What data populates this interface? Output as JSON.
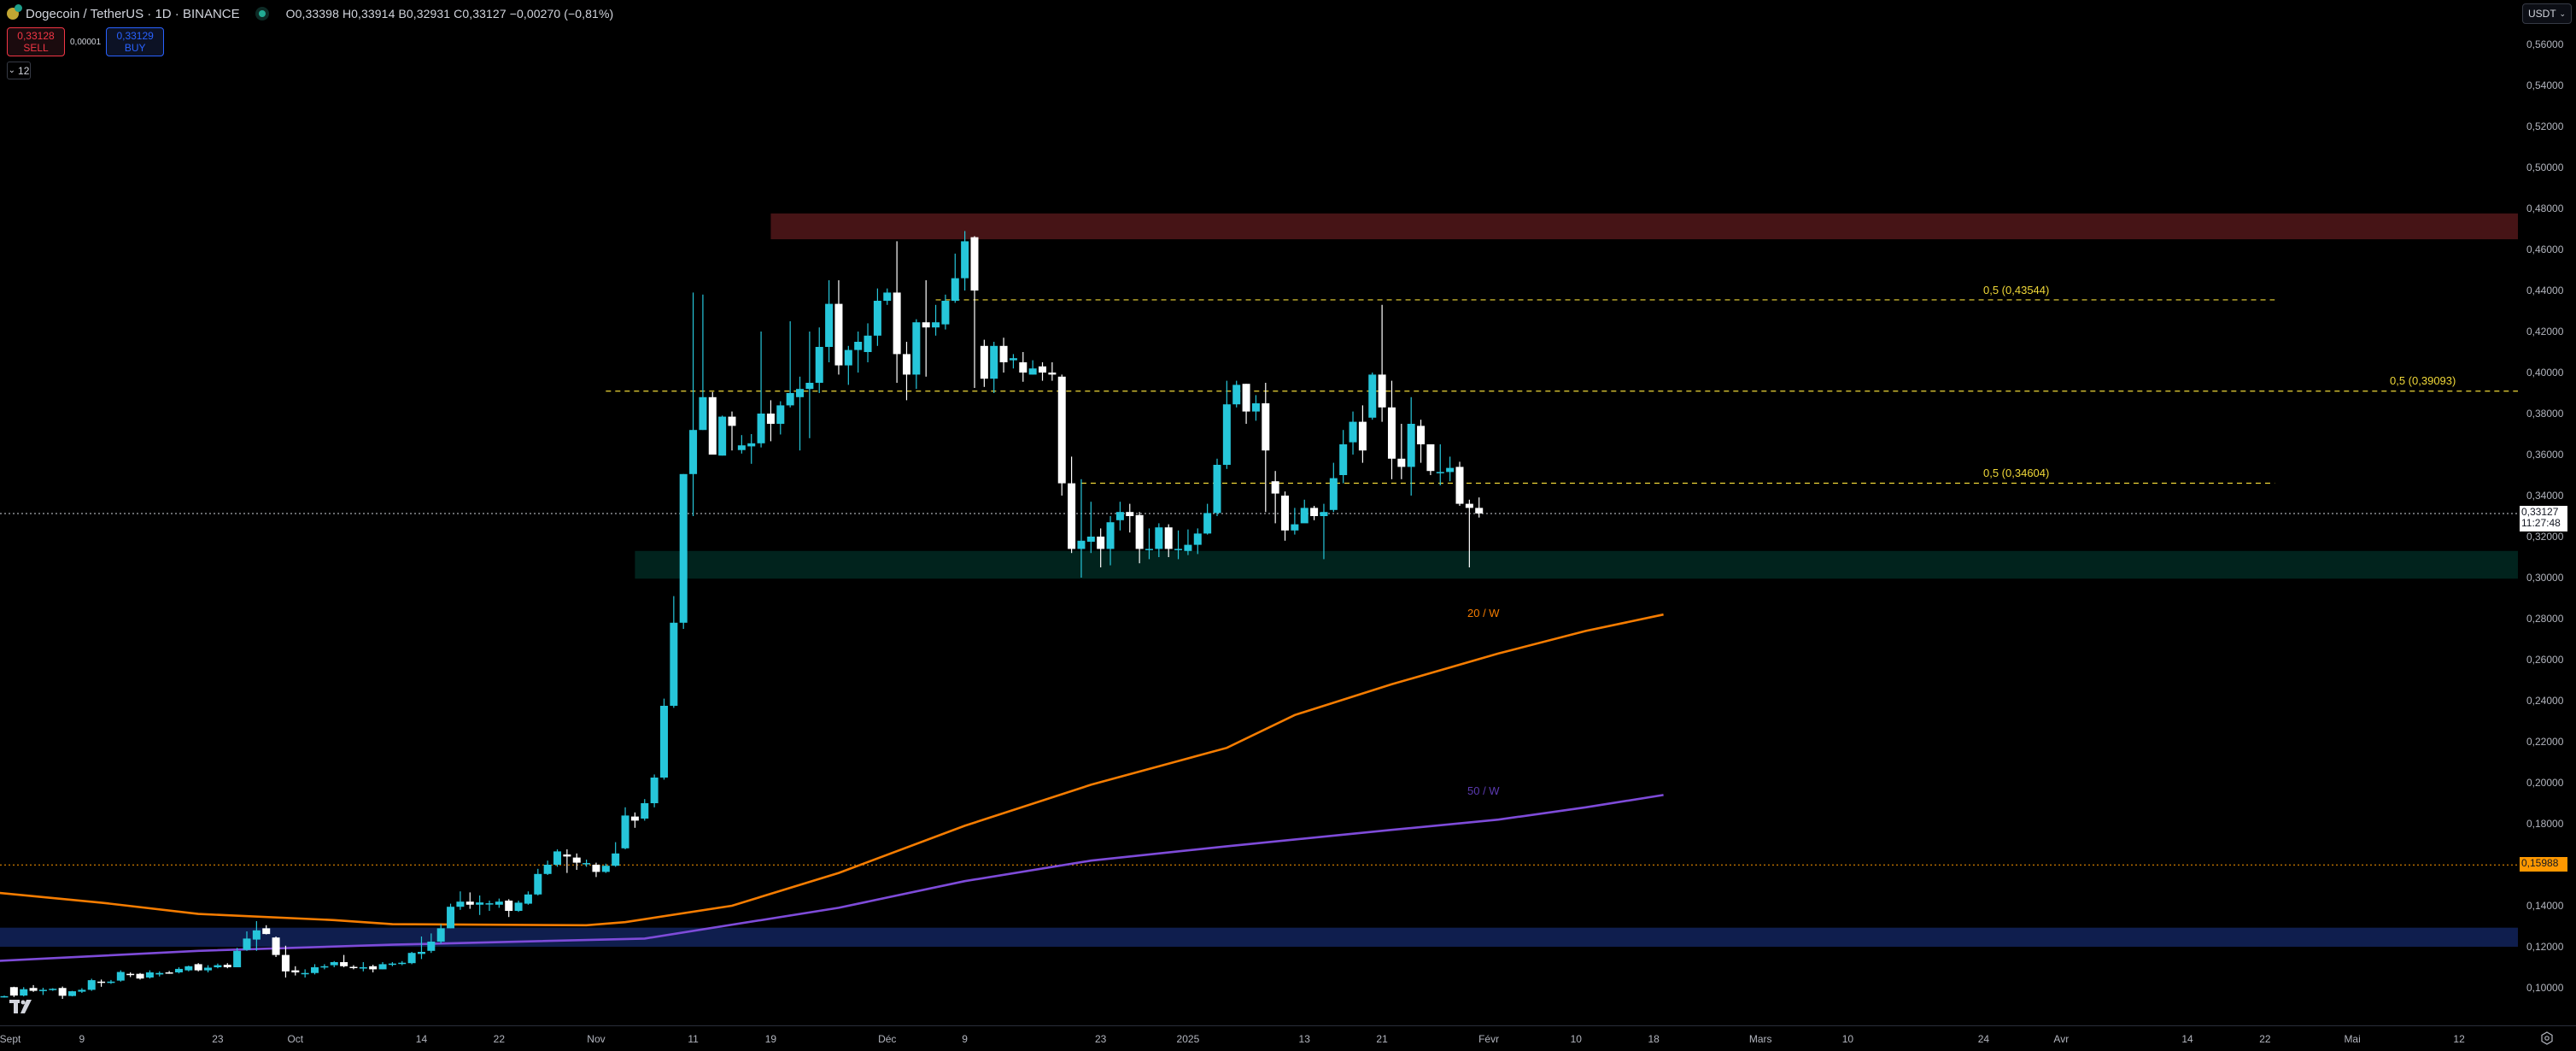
{
  "header": {
    "symbol_title": "Dogecoin / TetherUS · 1D · BINANCE",
    "ohlc_text": "O0,33398 H0,33914 B0,32931 C0,33127 −0,00270 (−0,81%)",
    "open": "0,33398",
    "high": "0,33914",
    "low": "0,32931",
    "close": "0,33127",
    "change": "−0,00270",
    "change_pct": "−0,81%"
  },
  "trade": {
    "sell_price": "0,33128",
    "sell_label": "SELL",
    "spread": "0,00001",
    "buy_price": "0,33129",
    "buy_label": "BUY"
  },
  "indicators_toggle": {
    "count": "12",
    "glyph": "⌄"
  },
  "currency_select": {
    "value": "USDT",
    "glyph": "⌄"
  },
  "price_tags": {
    "last_price": "0,33127",
    "countdown": "11:27:48",
    "hline_price": "0,15988"
  },
  "annotations": {
    "fib_1": "0,5 (0,43544)",
    "fib_2": "0,5 (0,39093)",
    "fib_3": "0,5 (0,34604)",
    "ma20": "20 / W",
    "ma50": "50 / W"
  },
  "colors": {
    "up": "#26c6da",
    "down": "#ffffff",
    "bg": "#000000",
    "ma20": "#f57c00",
    "ma50": "#7e4bd9",
    "fib": "#f0d838",
    "hline": "#ff9800",
    "zone_red": "#461416",
    "zone_green": "#01231d",
    "zone_blue": "#0f1e4e"
  },
  "chart_data": {
    "type": "candlestick",
    "title": "Dogecoin / TetherUS · 1D · BINANCE",
    "xlabel": "",
    "ylabel": "USDT",
    "ylim": [
      0.085,
      0.57
    ],
    "y_ticks": [
      "0,56000",
      "0,54000",
      "0,52000",
      "0,50000",
      "0,48000",
      "0,46000",
      "0,44000",
      "0,42000",
      "0,40000",
      "0,38000",
      "0,36000",
      "0,34000",
      "0,32000",
      "0,30000",
      "0,28000",
      "0,26000",
      "0,24000",
      "0,22000",
      "0,20000",
      "0,18000",
      "0,16000",
      "0,14000",
      "0,12000",
      "0,10000"
    ],
    "x_ticks": [
      {
        "label": "Sept",
        "day": 0
      },
      {
        "label": "9",
        "day": 8
      },
      {
        "label": "23",
        "day": 22
      },
      {
        "label": "Oct",
        "day": 30
      },
      {
        "label": "14",
        "day": 43
      },
      {
        "label": "22",
        "day": 51
      },
      {
        "label": "Nov",
        "day": 61
      },
      {
        "label": "11",
        "day": 71
      },
      {
        "label": "19",
        "day": 79
      },
      {
        "label": "Déc",
        "day": 91
      },
      {
        "label": "9",
        "day": 99
      },
      {
        "label": "23",
        "day": 113
      },
      {
        "label": "2025",
        "day": 122
      },
      {
        "label": "13",
        "day": 134
      },
      {
        "label": "21",
        "day": 142
      },
      {
        "label": "Févr",
        "day": 153
      },
      {
        "label": "10",
        "day": 162
      },
      {
        "label": "18",
        "day": 170
      },
      {
        "label": "Mars",
        "day": 181
      },
      {
        "label": "10",
        "day": 190
      },
      {
        "label": "24",
        "day": 204
      },
      {
        "label": "Avr",
        "day": 212
      },
      {
        "label": "14",
        "day": 225
      },
      {
        "label": "22",
        "day": 233
      },
      {
        "label": "Mai",
        "day": 242
      },
      {
        "label": "12",
        "day": 253
      }
    ],
    "candles_ohlc": [
      [
        0.0957,
        0.0959,
        0.0962,
        0.0952
      ],
      [
        0.1003,
        0.0962,
        0.1005,
        0.0955
      ],
      [
        0.0962,
        0.0993,
        0.1003,
        0.0958
      ],
      [
        0.0999,
        0.0985,
        0.1013,
        0.098
      ],
      [
        0.0984,
        0.099,
        0.1,
        0.0965
      ],
      [
        0.0993,
        0.0995,
        0.0998,
        0.0985
      ],
      [
        0.0999,
        0.0961,
        0.1006,
        0.0946
      ],
      [
        0.096,
        0.0983,
        0.0985,
        0.0958
      ],
      [
        0.0981,
        0.099,
        0.0998,
        0.0975
      ],
      [
        0.099,
        0.1037,
        0.1044,
        0.0985
      ],
      [
        0.103,
        0.1025,
        0.104,
        0.1005
      ],
      [
        0.1025,
        0.103,
        0.1038,
        0.1019
      ],
      [
        0.1035,
        0.1077,
        0.1085,
        0.103
      ],
      [
        0.1068,
        0.1062,
        0.1075,
        0.1052
      ],
      [
        0.1068,
        0.1045,
        0.1072,
        0.104
      ],
      [
        0.105,
        0.1075,
        0.1085,
        0.1045
      ],
      [
        0.1065,
        0.1072,
        0.108,
        0.1055
      ],
      [
        0.1075,
        0.1073,
        0.1082,
        0.1068
      ],
      [
        0.1075,
        0.1092,
        0.11,
        0.107
      ],
      [
        0.1085,
        0.1105,
        0.1108,
        0.108
      ],
      [
        0.1115,
        0.1085,
        0.112,
        0.108
      ],
      [
        0.1085,
        0.1098,
        0.111,
        0.1075
      ],
      [
        0.11,
        0.111,
        0.1118,
        0.1095
      ],
      [
        0.1112,
        0.11,
        0.112,
        0.1095
      ],
      [
        0.11,
        0.118,
        0.1195,
        0.11
      ],
      [
        0.1185,
        0.124,
        0.1275,
        0.118
      ],
      [
        0.1235,
        0.128,
        0.1325,
        0.118
      ],
      [
        0.129,
        0.1262,
        0.1305,
        0.126
      ],
      [
        0.1245,
        0.116,
        0.125,
        0.115
      ],
      [
        0.116,
        0.108,
        0.1205,
        0.105
      ],
      [
        0.1085,
        0.1075,
        0.1105,
        0.106
      ],
      [
        0.1072,
        0.1072,
        0.109,
        0.105
      ],
      [
        0.1072,
        0.11,
        0.1115,
        0.1065
      ],
      [
        0.11,
        0.1105,
        0.1115,
        0.109
      ],
      [
        0.111,
        0.1125,
        0.113,
        0.11
      ],
      [
        0.1125,
        0.1105,
        0.116,
        0.11
      ],
      [
        0.1102,
        0.1098,
        0.111,
        0.109
      ],
      [
        0.1095,
        0.11,
        0.1125,
        0.108
      ],
      [
        0.1105,
        0.109,
        0.1112,
        0.1075
      ],
      [
        0.109,
        0.1115,
        0.1125,
        0.109
      ],
      [
        0.1115,
        0.1118,
        0.1125,
        0.1105
      ],
      [
        0.1118,
        0.1122,
        0.113,
        0.111
      ],
      [
        0.112,
        0.117,
        0.1175,
        0.1115
      ],
      [
        0.1165,
        0.1175,
        0.125,
        0.114
      ],
      [
        0.118,
        0.1225,
        0.1265,
        0.117
      ],
      [
        0.1225,
        0.129,
        0.131,
        0.1215
      ],
      [
        0.129,
        0.1395,
        0.141,
        0.129
      ],
      [
        0.1395,
        0.142,
        0.147,
        0.138
      ],
      [
        0.142,
        0.1405,
        0.1465,
        0.1385
      ],
      [
        0.1405,
        0.1416,
        0.145,
        0.1355
      ],
      [
        0.141,
        0.1412,
        0.1425,
        0.1375
      ],
      [
        0.1405,
        0.142,
        0.1435,
        0.139
      ],
      [
        0.1425,
        0.1375,
        0.1432,
        0.1345
      ],
      [
        0.1375,
        0.1415,
        0.1425,
        0.137
      ],
      [
        0.141,
        0.1455,
        0.147,
        0.1405
      ],
      [
        0.1455,
        0.1555,
        0.158,
        0.145
      ],
      [
        0.1555,
        0.16,
        0.162,
        0.155
      ],
      [
        0.16,
        0.1665,
        0.1675,
        0.159
      ],
      [
        0.165,
        0.164,
        0.1675,
        0.156
      ],
      [
        0.1635,
        0.161,
        0.1655,
        0.1575
      ],
      [
        0.1605,
        0.1608,
        0.1625,
        0.159
      ],
      [
        0.16,
        0.1565,
        0.161,
        0.154
      ],
      [
        0.1565,
        0.1595,
        0.1605,
        0.156
      ],
      [
        0.1595,
        0.1655,
        0.171,
        0.159
      ],
      [
        0.168,
        0.184,
        0.188,
        0.1675
      ],
      [
        0.1835,
        0.1815,
        0.1855,
        0.178
      ],
      [
        0.1825,
        0.19,
        0.192,
        0.1815
      ],
      [
        0.19,
        0.2025,
        0.204,
        0.188
      ],
      [
        0.2025,
        0.2375,
        0.241,
        0.2015
      ],
      [
        0.2375,
        0.278,
        0.291,
        0.2365
      ],
      [
        0.278,
        0.3505,
        0.3505,
        0.275
      ],
      [
        0.3505,
        0.372,
        0.439,
        0.33
      ],
      [
        0.372,
        0.388,
        0.438,
        0.372
      ],
      [
        0.388,
        0.36,
        0.3905,
        0.36
      ],
      [
        0.3595,
        0.3785,
        0.379,
        0.3595
      ],
      [
        0.3785,
        0.374,
        0.381,
        0.362
      ],
      [
        0.3622,
        0.3645,
        0.3695,
        0.3605
      ],
      [
        0.364,
        0.3655,
        0.37,
        0.3555
      ],
      [
        0.3655,
        0.38,
        0.42,
        0.3635
      ],
      [
        0.38,
        0.375,
        0.3865,
        0.3665
      ],
      [
        0.375,
        0.384,
        0.386,
        0.3698
      ],
      [
        0.384,
        0.39,
        0.425,
        0.383
      ],
      [
        0.388,
        0.392,
        0.398,
        0.362
      ],
      [
        0.392,
        0.395,
        0.42,
        0.368
      ],
      [
        0.395,
        0.4125,
        0.422,
        0.39
      ],
      [
        0.4125,
        0.4335,
        0.445,
        0.405
      ],
      [
        0.4335,
        0.4035,
        0.445,
        0.399
      ],
      [
        0.4035,
        0.411,
        0.413,
        0.394
      ],
      [
        0.411,
        0.415,
        0.42,
        0.4
      ],
      [
        0.41,
        0.418,
        0.424,
        0.405
      ],
      [
        0.418,
        0.435,
        0.441,
        0.413
      ],
      [
        0.435,
        0.439,
        0.441,
        0.433
      ],
      [
        0.439,
        0.409,
        0.464,
        0.395
      ],
      [
        0.409,
        0.399,
        0.415,
        0.3865
      ],
      [
        0.399,
        0.4245,
        0.426,
        0.392
      ],
      [
        0.4245,
        0.422,
        0.445,
        0.398
      ],
      [
        0.422,
        0.4245,
        0.433,
        0.418
      ],
      [
        0.4235,
        0.435,
        0.438,
        0.421
      ],
      [
        0.435,
        0.446,
        0.458,
        0.434
      ],
      [
        0.446,
        0.464,
        0.469,
        0.44
      ],
      [
        0.466,
        0.44,
        0.4665,
        0.3925
      ],
      [
        0.413,
        0.397,
        0.416,
        0.393
      ],
      [
        0.397,
        0.413,
        0.415,
        0.39
      ],
      [
        0.413,
        0.405,
        0.417,
        0.4
      ],
      [
        0.406,
        0.407,
        0.409,
        0.402
      ],
      [
        0.405,
        0.4,
        0.41,
        0.3955
      ],
      [
        0.399,
        0.402,
        0.406,
        0.399
      ],
      [
        0.403,
        0.4,
        0.405,
        0.396
      ],
      [
        0.4,
        0.399,
        0.405,
        0.396
      ],
      [
        0.398,
        0.346,
        0.399,
        0.34
      ],
      [
        0.346,
        0.314,
        0.359,
        0.312
      ],
      [
        0.314,
        0.318,
        0.348,
        0.3
      ],
      [
        0.3175,
        0.32,
        0.337,
        0.312
      ],
      [
        0.32,
        0.314,
        0.324,
        0.305
      ],
      [
        0.314,
        0.327,
        0.33,
        0.306
      ],
      [
        0.328,
        0.332,
        0.337,
        0.323
      ],
      [
        0.332,
        0.33,
        0.336,
        0.322
      ],
      [
        0.3305,
        0.314,
        0.332,
        0.307
      ],
      [
        0.314,
        0.314,
        0.324,
        0.309
      ],
      [
        0.314,
        0.3245,
        0.3265,
        0.31
      ],
      [
        0.3245,
        0.314,
        0.326,
        0.31
      ],
      [
        0.314,
        0.314,
        0.323,
        0.309
      ],
      [
        0.313,
        0.316,
        0.3235,
        0.311
      ],
      [
        0.316,
        0.3215,
        0.324,
        0.3115
      ],
      [
        0.3215,
        0.3315,
        0.336,
        0.321
      ],
      [
        0.3315,
        0.355,
        0.358,
        0.33
      ],
      [
        0.355,
        0.3845,
        0.396,
        0.353
      ],
      [
        0.3845,
        0.394,
        0.396,
        0.383
      ],
      [
        0.3945,
        0.381,
        0.3945,
        0.375
      ],
      [
        0.381,
        0.385,
        0.389,
        0.3765
      ],
      [
        0.385,
        0.362,
        0.395,
        0.332
      ],
      [
        0.347,
        0.341,
        0.352,
        0.3265
      ],
      [
        0.34,
        0.323,
        0.342,
        0.318
      ],
      [
        0.323,
        0.326,
        0.334,
        0.321
      ],
      [
        0.3265,
        0.334,
        0.338,
        0.327
      ],
      [
        0.334,
        0.33,
        0.335,
        0.328
      ],
      [
        0.33,
        0.332,
        0.336,
        0.309
      ],
      [
        0.333,
        0.3485,
        0.356,
        0.332
      ],
      [
        0.35,
        0.365,
        0.372,
        0.346
      ],
      [
        0.366,
        0.376,
        0.381,
        0.36
      ],
      [
        0.376,
        0.362,
        0.384,
        0.356
      ],
      [
        0.378,
        0.399,
        0.4,
        0.377
      ],
      [
        0.399,
        0.383,
        0.433,
        0.376
      ],
      [
        0.383,
        0.358,
        0.396,
        0.348
      ],
      [
        0.358,
        0.354,
        0.375,
        0.348
      ],
      [
        0.354,
        0.375,
        0.388,
        0.34
      ],
      [
        0.374,
        0.365,
        0.377,
        0.356
      ],
      [
        0.365,
        0.352,
        0.365,
        0.35
      ],
      [
        0.351,
        0.3515,
        0.365,
        0.345
      ],
      [
        0.3515,
        0.3535,
        0.359,
        0.347
      ],
      [
        0.354,
        0.336,
        0.3565,
        0.335
      ],
      [
        0.336,
        0.334,
        0.338,
        0.305
      ],
      [
        0.334,
        0.3313,
        0.3391,
        0.3293
      ]
    ],
    "series": [
      {
        "name": "20 / W (MA)",
        "color": "#f57c00",
        "points": [
          [
            -1,
            0.1465
          ],
          [
            10,
            0.1415
          ],
          [
            20,
            0.136
          ],
          [
            34,
            0.133
          ],
          [
            40,
            0.131
          ],
          [
            60,
            0.1305
          ],
          [
            64,
            0.132
          ],
          [
            75,
            0.14
          ],
          [
            86,
            0.156
          ],
          [
            99,
            0.179
          ],
          [
            112,
            0.199
          ],
          [
            126,
            0.217
          ],
          [
            133,
            0.233
          ],
          [
            143,
            0.248
          ],
          [
            154,
            0.263
          ],
          [
            163,
            0.274
          ],
          [
            171,
            0.282
          ]
        ]
      },
      {
        "name": "50 / W (MA)",
        "color": "#7e4bd9",
        "points": [
          [
            -1,
            0.113
          ],
          [
            20,
            0.118
          ],
          [
            40,
            0.121
          ],
          [
            66,
            0.124
          ],
          [
            86,
            0.139
          ],
          [
            99,
            0.152
          ],
          [
            112,
            0.162
          ],
          [
            126,
            0.169
          ],
          [
            143,
            0.177
          ],
          [
            154,
            0.182
          ],
          [
            163,
            0.188
          ],
          [
            171,
            0.194
          ]
        ]
      }
    ],
    "zones": [
      {
        "name": "resistance",
        "color": "#461416",
        "from_day": 79,
        "y_top": 0.4776,
        "y_bottom": 0.465
      },
      {
        "name": "support",
        "color": "#01231d",
        "from_day": 65,
        "y_top": 0.313,
        "y_bottom": 0.2995
      },
      {
        "name": "blue-zone",
        "color": "#0f1e4e",
        "from_day": -1,
        "y_top": 0.1293,
        "y_bottom": 0.12
      }
    ],
    "horizontal_lines": [
      {
        "label": "0,5 (0,43544)",
        "price": 0.43544,
        "from_day": 96,
        "to_day": 234,
        "style": "dashed",
        "color": "#f0d838"
      },
      {
        "label": "0,5 (0,39093)",
        "price": 0.39093,
        "from_day": 62,
        "to_day": 281,
        "style": "dashed",
        "color": "#f0d838"
      },
      {
        "label": "0,5 (0,34604)",
        "price": 0.34604,
        "from_day": 111,
        "to_day": 234,
        "style": "dashed",
        "color": "#f0d838"
      },
      {
        "label": "0,15988",
        "price": 0.15988,
        "style": "dotted",
        "color": "#ff9800"
      },
      {
        "label": "last 0,33127",
        "price": 0.33127,
        "style": "dotted",
        "color": "#d1d4dc"
      }
    ],
    "grid": false,
    "legend_position": "inline labels"
  }
}
